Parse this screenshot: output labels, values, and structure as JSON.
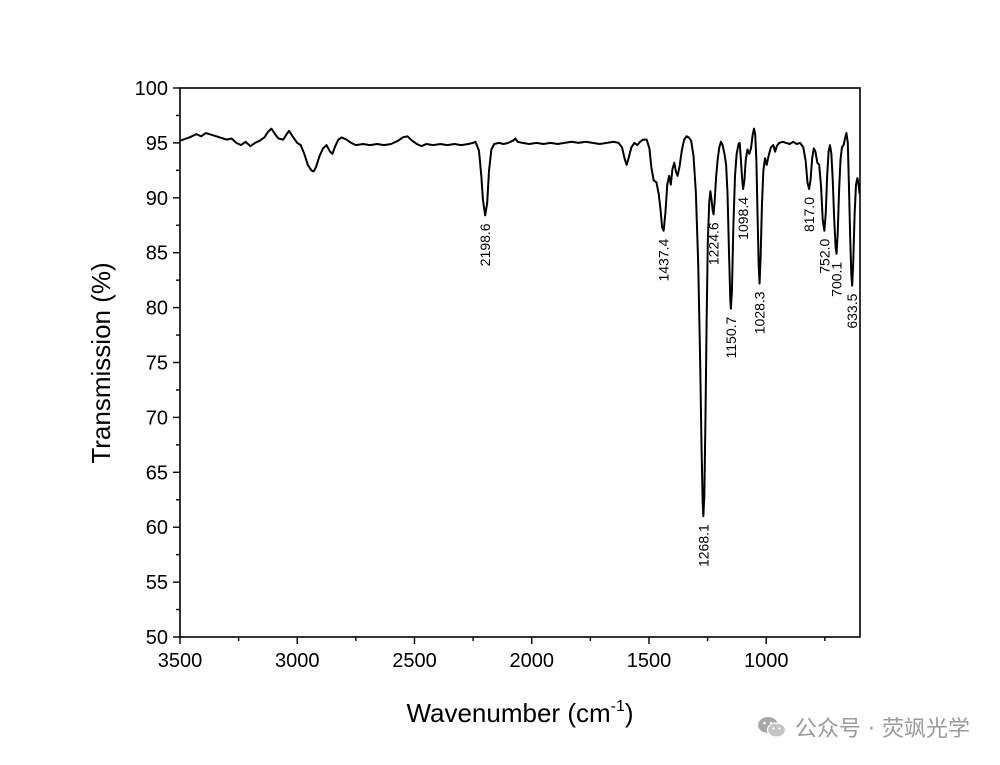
{
  "chart_data": {
    "type": "line",
    "xlabel": "Wavenumber (cm",
    "xlabel_sup": "-1",
    "xlabel_end": ")",
    "ylabel": "Transmission (%)",
    "xlim": [
      3500,
      600
    ],
    "ylim": [
      50,
      100
    ],
    "x_reversed": true,
    "x_ticks": [
      3500,
      3000,
      2500,
      2000,
      1500,
      1000
    ],
    "x_tick_labels": [
      "3500",
      "3000",
      "2500",
      "2000",
      "1500",
      "1000"
    ],
    "y_ticks": [
      50,
      55,
      60,
      65,
      70,
      75,
      80,
      85,
      90,
      95,
      100
    ],
    "y_tick_labels": [
      "50",
      "55",
      "60",
      "65",
      "70",
      "75",
      "80",
      "85",
      "90",
      "95",
      "100"
    ],
    "grid": false,
    "line_color": "#000000",
    "series": [
      {
        "points": [
          [
            3500,
            95.2
          ],
          [
            3460,
            95.5
          ],
          [
            3430,
            95.8
          ],
          [
            3410,
            95.6
          ],
          [
            3390,
            95.9
          ],
          [
            3360,
            95.7
          ],
          [
            3330,
            95.5
          ],
          [
            3300,
            95.3
          ],
          [
            3280,
            95.4
          ],
          [
            3260,
            95.0
          ],
          [
            3240,
            94.8
          ],
          [
            3220,
            95.1
          ],
          [
            3200,
            94.7
          ],
          [
            3180,
            95.0
          ],
          [
            3160,
            95.2
          ],
          [
            3140,
            95.5
          ],
          [
            3125,
            96.0
          ],
          [
            3110,
            96.3
          ],
          [
            3095,
            95.8
          ],
          [
            3080,
            95.4
          ],
          [
            3060,
            95.3
          ],
          [
            3045,
            95.8
          ],
          [
            3035,
            96.1
          ],
          [
            3020,
            95.6
          ],
          [
            3000,
            95.0
          ],
          [
            2985,
            94.8
          ],
          [
            2970,
            94.0
          ],
          [
            2955,
            93.0
          ],
          [
            2940,
            92.5
          ],
          [
            2930,
            92.4
          ],
          [
            2920,
            92.8
          ],
          [
            2905,
            93.8
          ],
          [
            2890,
            94.5
          ],
          [
            2875,
            94.8
          ],
          [
            2860,
            94.2
          ],
          [
            2850,
            94.0
          ],
          [
            2840,
            94.6
          ],
          [
            2825,
            95.3
          ],
          [
            2810,
            95.5
          ],
          [
            2790,
            95.3
          ],
          [
            2770,
            95.0
          ],
          [
            2750,
            94.8
          ],
          [
            2720,
            94.9
          ],
          [
            2690,
            94.8
          ],
          [
            2660,
            94.9
          ],
          [
            2630,
            94.8
          ],
          [
            2600,
            94.9
          ],
          [
            2570,
            95.2
          ],
          [
            2550,
            95.5
          ],
          [
            2530,
            95.6
          ],
          [
            2510,
            95.2
          ],
          [
            2490,
            94.9
          ],
          [
            2470,
            94.7
          ],
          [
            2450,
            94.9
          ],
          [
            2420,
            94.8
          ],
          [
            2390,
            94.9
          ],
          [
            2360,
            94.8
          ],
          [
            2330,
            94.9
          ],
          [
            2300,
            94.8
          ],
          [
            2270,
            94.9
          ],
          [
            2250,
            95.0
          ],
          [
            2240,
            95.1
          ],
          [
            2225,
            94.3
          ],
          [
            2215,
            92.0
          ],
          [
            2208,
            89.8
          ],
          [
            2198.6,
            88.4
          ],
          [
            2190,
            89.5
          ],
          [
            2182,
            92.5
          ],
          [
            2172,
            94.4
          ],
          [
            2160,
            94.9
          ],
          [
            2140,
            95.0
          ],
          [
            2120,
            94.9
          ],
          [
            2100,
            95.0
          ],
          [
            2080,
            95.2
          ],
          [
            2070,
            95.4
          ],
          [
            2060,
            95.1
          ],
          [
            2040,
            95.0
          ],
          [
            2010,
            94.9
          ],
          [
            1980,
            95.0
          ],
          [
            1950,
            94.9
          ],
          [
            1920,
            95.0
          ],
          [
            1890,
            94.9
          ],
          [
            1860,
            95.0
          ],
          [
            1830,
            95.1
          ],
          [
            1800,
            95.0
          ],
          [
            1770,
            95.1
          ],
          [
            1740,
            95.0
          ],
          [
            1710,
            94.9
          ],
          [
            1680,
            95.0
          ],
          [
            1650,
            95.1
          ],
          [
            1630,
            95.0
          ],
          [
            1615,
            94.6
          ],
          [
            1603,
            93.5
          ],
          [
            1595,
            93.0
          ],
          [
            1587,
            93.6
          ],
          [
            1575,
            94.6
          ],
          [
            1562,
            95.0
          ],
          [
            1550,
            94.8
          ],
          [
            1538,
            95.1
          ],
          [
            1525,
            95.3
          ],
          [
            1510,
            95.3
          ],
          [
            1498,
            94.5
          ],
          [
            1490,
            92.8
          ],
          [
            1480,
            91.6
          ],
          [
            1468,
            91.4
          ],
          [
            1458,
            90.3
          ],
          [
            1450,
            88.8
          ],
          [
            1444,
            87.3
          ],
          [
            1437.4,
            87.0
          ],
          [
            1430,
            88.6
          ],
          [
            1422,
            91.2
          ],
          [
            1414,
            92.0
          ],
          [
            1407,
            91.2
          ],
          [
            1400,
            92.6
          ],
          [
            1392,
            93.2
          ],
          [
            1385,
            92.4
          ],
          [
            1378,
            92.0
          ],
          [
            1370,
            92.8
          ],
          [
            1360,
            94.3
          ],
          [
            1350,
            95.3
          ],
          [
            1340,
            95.6
          ],
          [
            1330,
            95.5
          ],
          [
            1320,
            95.2
          ],
          [
            1310,
            93.8
          ],
          [
            1300,
            90.5
          ],
          [
            1290,
            84.0
          ],
          [
            1282,
            75.5
          ],
          [
            1276,
            67.5
          ],
          [
            1271,
            62.3
          ],
          [
            1268.1,
            61.0
          ],
          [
            1264,
            62.8
          ],
          [
            1259,
            70.0
          ],
          [
            1254,
            79.0
          ],
          [
            1249,
            86.0
          ],
          [
            1243,
            89.6
          ],
          [
            1238,
            90.6
          ],
          [
            1233,
            89.8
          ],
          [
            1228,
            88.8
          ],
          [
            1224.6,
            88.5
          ],
          [
            1220,
            89.6
          ],
          [
            1214,
            91.8
          ],
          [
            1207,
            93.5
          ],
          [
            1200,
            94.6
          ],
          [
            1193,
            95.1
          ],
          [
            1186,
            94.8
          ],
          [
            1178,
            94.0
          ],
          [
            1171,
            93.0
          ],
          [
            1165,
            90.4
          ],
          [
            1158,
            84.5
          ],
          [
            1153,
            80.7
          ],
          [
            1150.7,
            79.9
          ],
          [
            1146,
            81.6
          ],
          [
            1140,
            87.5
          ],
          [
            1133,
            92.0
          ],
          [
            1126,
            94.0
          ],
          [
            1118,
            94.9
          ],
          [
            1113,
            95.0
          ],
          [
            1108,
            93.5
          ],
          [
            1103,
            91.8
          ],
          [
            1098.4,
            90.8
          ],
          [
            1093,
            91.6
          ],
          [
            1087,
            93.5
          ],
          [
            1080,
            94.4
          ],
          [
            1072,
            94.0
          ],
          [
            1065,
            94.5
          ],
          [
            1058,
            95.7
          ],
          [
            1052,
            96.3
          ],
          [
            1047,
            95.8
          ],
          [
            1042,
            93.5
          ],
          [
            1037,
            88.5
          ],
          [
            1032,
            83.8
          ],
          [
            1028.3,
            82.2
          ],
          [
            1024,
            84.5
          ],
          [
            1018,
            89.5
          ],
          [
            1012,
            92.5
          ],
          [
            1005,
            93.6
          ],
          [
            998,
            93.0
          ],
          [
            990,
            93.8
          ],
          [
            980,
            94.6
          ],
          [
            970,
            94.8
          ],
          [
            962,
            94.2
          ],
          [
            955,
            94.7
          ],
          [
            945,
            95.0
          ],
          [
            930,
            95.1
          ],
          [
            915,
            95.0
          ],
          [
            900,
            94.9
          ],
          [
            885,
            95.1
          ],
          [
            870,
            94.9
          ],
          [
            855,
            95.0
          ],
          [
            842,
            94.6
          ],
          [
            832,
            93.4
          ],
          [
            824,
            91.4
          ],
          [
            817.0,
            90.8
          ],
          [
            811,
            91.6
          ],
          [
            804,
            93.6
          ],
          [
            797,
            94.5
          ],
          [
            790,
            94.2
          ],
          [
            782,
            93.2
          ],
          [
            774,
            93.0
          ],
          [
            766,
            91.0
          ],
          [
            759,
            88.0
          ],
          [
            752.0,
            87.0
          ],
          [
            746,
            88.6
          ],
          [
            740,
            92.0
          ],
          [
            734,
            94.2
          ],
          [
            728,
            94.8
          ],
          [
            722,
            94.0
          ],
          [
            716,
            91.5
          ],
          [
            710,
            88.0
          ],
          [
            704,
            85.5
          ],
          [
            700.1,
            84.9
          ],
          [
            695,
            86.8
          ],
          [
            689,
            90.8
          ],
          [
            683,
            93.5
          ],
          [
            677,
            94.6
          ],
          [
            670,
            94.8
          ],
          [
            664,
            95.4
          ],
          [
            658,
            95.9
          ],
          [
            652,
            95.0
          ],
          [
            647,
            91.0
          ],
          [
            642,
            86.5
          ],
          [
            637,
            83.0
          ],
          [
            633.5,
            82.0
          ],
          [
            629,
            84.0
          ],
          [
            623,
            88.5
          ],
          [
            617,
            91.2
          ],
          [
            611,
            91.8
          ],
          [
            606,
            91.2
          ],
          [
            602,
            90.4
          ]
        ]
      }
    ],
    "annotations": [
      {
        "x": 2198.6,
        "y": 88.4,
        "text": "2198.6"
      },
      {
        "x": 1437.4,
        "y": 87.0,
        "text": "1437.4"
      },
      {
        "x": 1268.1,
        "y": 61.0,
        "text": "1268.1"
      },
      {
        "x": 1224.6,
        "y": 88.5,
        "text": "1224.6"
      },
      {
        "x": 1150.7,
        "y": 79.9,
        "text": "1150.7"
      },
      {
        "x": 1098.4,
        "y": 90.8,
        "text": "1098.4"
      },
      {
        "x": 1028.3,
        "y": 82.2,
        "text": "1028.3"
      },
      {
        "x": 817.0,
        "y": 90.8,
        "text": "817.0"
      },
      {
        "x": 752.0,
        "y": 87.0,
        "text": "752.0"
      },
      {
        "x": 700.1,
        "y": 84.9,
        "text": "700.1"
      },
      {
        "x": 633.5,
        "y": 82.0,
        "text": "633.5"
      }
    ]
  },
  "watermark": {
    "icon": "wechat-icon",
    "text": "公众号 · 荧飒光学",
    "color": "#9a9a9a"
  }
}
